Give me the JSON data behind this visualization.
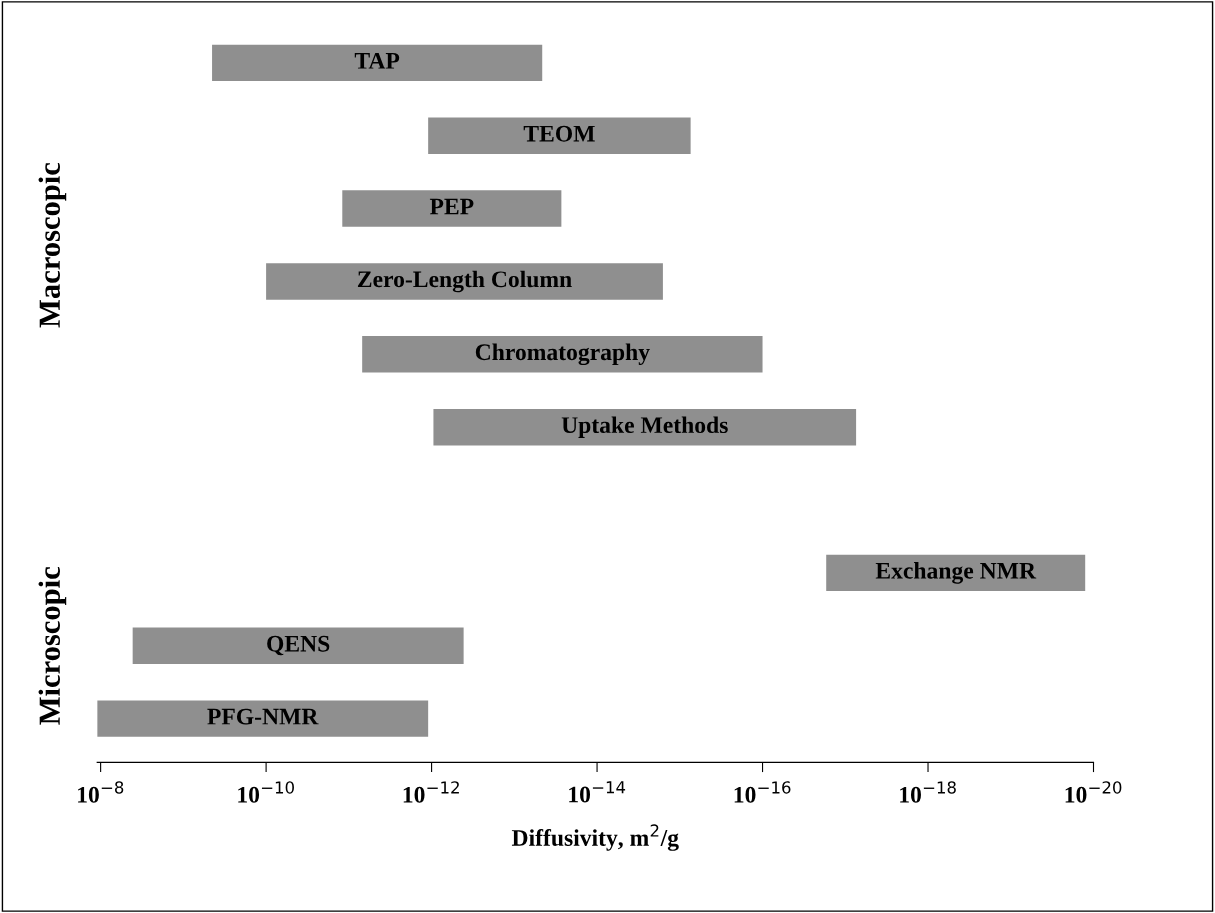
{
  "chart_data": {
    "type": "bar",
    "orientation": "horizontal",
    "log": "x",
    "categories": [
      "TAP",
      "TEOM",
      "PEP",
      "Zero-Length Column",
      "Chromatography",
      "Uptake Methods",
      null,
      "Exchange NMR",
      "QENS",
      "PFG-NMR"
    ],
    "base": [
      4.5e-10,
      1.1e-12,
      1.2e-11,
      1e-10,
      6.9e-12,
      9.5e-13,
      null,
      1.7e-17,
      4.1e-09,
      1.1e-08
    ],
    "values": [
      -4.49954e-10,
      -1.09926e-12,
      -1.1973e-11,
      -9.99984e-11,
      -6.8999e-12,
      -9.499926e-13,
      null,
      -1.69874e-17,
      -4.09959e-09,
      -1.09989e-08
    ],
    "color": "#8f8f8f",
    "xlim": [
      1.1e-08,
      1e-20
    ],
    "xticks": [
      {
        "value": 1e-08,
        "label": "10$^{−8}$"
      },
      {
        "value": 1e-10,
        "label": "10$^{−10}$"
      },
      {
        "value": 1e-12,
        "label": "10$^{−12}$"
      },
      {
        "value": 1e-14,
        "label": "10$^{−14}$"
      },
      {
        "value": 1e-16,
        "label": "10$^{−16}$"
      },
      {
        "value": 1e-18,
        "label": "10$^{−18}$"
      },
      {
        "value": 1e-20,
        "label": "10$^{−20}$"
      }
    ],
    "xlabel": "Diffusivity, m$^{2}$/g",
    "tick_labels": "x",
    "grid": false,
    "legend": false,
    "annotations": [
      "Macroscopic",
      "Microscopic"
    ]
  }
}
